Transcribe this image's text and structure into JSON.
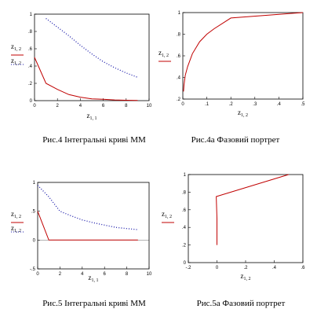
{
  "chart_data": [
    {
      "id": "p1",
      "type": "line",
      "caption": "Рис.4 Інтегральні криві ММ",
      "xlabel": "z1,1",
      "ylabel": "z1,2",
      "xlim": [
        0,
        10
      ],
      "ylim": [
        0,
        1
      ],
      "xticks": [
        0,
        2,
        4,
        6,
        8,
        10
      ],
      "yticks": [
        0,
        0.2,
        0.4,
        0.6,
        0.8,
        1
      ],
      "legend_colors": [
        "#c00000",
        "#1a1aaa"
      ],
      "series": [
        {
          "color": "#c00000",
          "style": "solid",
          "x": [
            0,
            1,
            2,
            3,
            4,
            5,
            6,
            7,
            8,
            9
          ],
          "y": [
            0.5,
            0.2,
            0.13,
            0.07,
            0.04,
            0.02,
            0.015,
            0.008,
            0.005,
            0.003
          ]
        },
        {
          "color": "#1a1aaa",
          "style": "dotted",
          "x": [
            1,
            2,
            3,
            4,
            5,
            6,
            7,
            8,
            9
          ],
          "y": [
            0.95,
            0.85,
            0.75,
            0.64,
            0.54,
            0.45,
            0.38,
            0.32,
            0.27
          ]
        }
      ]
    },
    {
      "id": "p2",
      "type": "line",
      "caption": "Рис.4а Фазовий портрет",
      "xlabel": "z1,2",
      "ylabel": "z1,2",
      "xlim": [
        0,
        0.5
      ],
      "ylim": [
        0.2,
        1
      ],
      "xticks": [
        0,
        0.1,
        0.2,
        0.3,
        0.4,
        0.5
      ],
      "yticks": [
        0.2,
        0.4,
        0.6,
        0.8,
        1
      ],
      "legend_colors": [
        "#c00000"
      ],
      "series": [
        {
          "color": "#c00000",
          "style": "solid",
          "x": [
            0.003,
            0.005,
            0.01,
            0.02,
            0.04,
            0.07,
            0.1,
            0.13,
            0.2,
            0.5
          ],
          "y": [
            0.27,
            0.33,
            0.42,
            0.5,
            0.62,
            0.73,
            0.8,
            0.85,
            0.95,
            1.0
          ]
        }
      ]
    },
    {
      "id": "p3",
      "type": "line",
      "caption": "Рис.5 Інтегральні криві ММ",
      "xlabel": "z1,1",
      "ylabel": "z1,2",
      "xlim": [
        0,
        10
      ],
      "ylim": [
        -0.5,
        1
      ],
      "xticks": [
        0,
        2,
        4,
        6,
        8,
        10
      ],
      "yticks": [
        -0.5,
        0,
        0.5,
        1
      ],
      "legend_colors": [
        "#c00000",
        "#1a1aaa"
      ],
      "series": [
        {
          "color": "#c00000",
          "style": "solid",
          "x": [
            0,
            1,
            9
          ],
          "y": [
            0.5,
            0,
            0
          ]
        },
        {
          "color": "#1a1aaa",
          "style": "dotted",
          "x": [
            0,
            1,
            2,
            3,
            4,
            5,
            6,
            7,
            8,
            9
          ],
          "y": [
            0.95,
            0.75,
            0.5,
            0.42,
            0.35,
            0.3,
            0.26,
            0.22,
            0.2,
            0.18
          ]
        }
      ]
    },
    {
      "id": "p4",
      "type": "line",
      "caption": "Рис.5а Фазовий портрет",
      "xlabel": "z1,2",
      "ylabel": "z1,2",
      "xlim": [
        -0.2,
        0.6
      ],
      "ylim": [
        0,
        1
      ],
      "xticks": [
        -0.2,
        0,
        0.2,
        0.4,
        0.6
      ],
      "yticks": [
        0,
        0.2,
        0.4,
        0.6,
        0.8,
        1
      ],
      "legend_colors": [
        "#c00000"
      ],
      "series": [
        {
          "color": "#c00000",
          "style": "solid",
          "x": [
            0.0,
            0.0,
            -0.005,
            0.5
          ],
          "y": [
            0.2,
            0.5,
            0.75,
            1.0
          ]
        }
      ]
    }
  ]
}
